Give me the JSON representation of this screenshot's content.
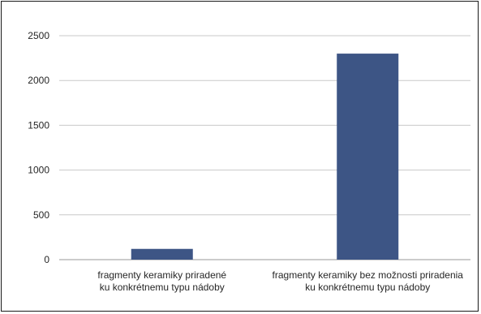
{
  "chart_data": {
    "type": "bar",
    "title": "",
    "xlabel": "",
    "ylabel": "",
    "categories": [
      [
        "fragmenty keramiky priradené",
        "ku konkrétnemu typu nádoby"
      ],
      [
        "fragmenty keramiky bez možnosti priradenia",
        "ku konkrétnemu typu nádoby"
      ]
    ],
    "values": [
      120,
      2300
    ],
    "ylim": [
      0,
      2500
    ],
    "yticks": [
      0,
      500,
      1000,
      1500,
      2000,
      2500
    ],
    "grid": true,
    "legend": "none",
    "colors": {
      "bar": "#3d5585",
      "grid": "#c8c8c8",
      "axis": "#9a9a9a"
    }
  }
}
